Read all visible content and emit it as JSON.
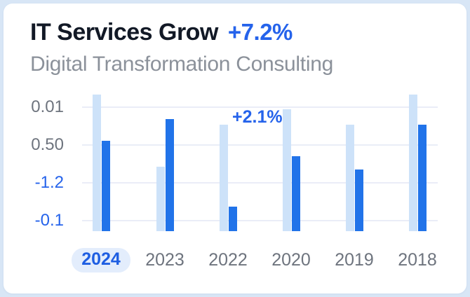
{
  "card": {
    "title": "IT Services Grow",
    "growth_badge": "+7.2%",
    "subtitle": "Digital Transformation Consulting"
  },
  "chart_data": {
    "type": "bar",
    "title": "IT Services Grow +7.2%",
    "subtitle": "Digital Transformation Consulting",
    "categories": [
      "2024",
      "2023",
      "2022",
      "2020",
      "2019",
      "2018"
    ],
    "active_category": "2024",
    "series": [
      {
        "name": "light",
        "color": "#cde2f9",
        "values": [
          100,
          47,
          78,
          89,
          78,
          100
        ]
      },
      {
        "name": "dark",
        "color": "#2173e9",
        "values": [
          66,
          82,
          18,
          55,
          45,
          78
        ]
      }
    ],
    "value_unit": "relative bar height, 100 = tallest bar (y-axis labels are decorative)",
    "y_ticks": [
      {
        "label": "0.01",
        "color": "#6e747e"
      },
      {
        "label": "0.50",
        "color": "#6e747e"
      },
      {
        "label": "-1.2",
        "color": "#2563eb"
      },
      {
        "label": "-0.1",
        "color": "#2563eb"
      }
    ],
    "annotation": {
      "text": "+2.1%",
      "near_category": "2022"
    },
    "legend": "none",
    "grid": "horizontal"
  },
  "colors": {
    "page_bg": "#d8e6f6",
    "card_bg": "#ffffff",
    "title_text": "#121926",
    "accent_blue": "#2563eb",
    "subtitle_gray": "#8b919a",
    "tick_gray": "#6e747e",
    "gridline": "#eaedf7",
    "bar_light": "#cde2f9",
    "bar_dark": "#2173e9",
    "active_pill_bg": "#e3edfc",
    "active_pill_text": "#1e5ee2"
  }
}
